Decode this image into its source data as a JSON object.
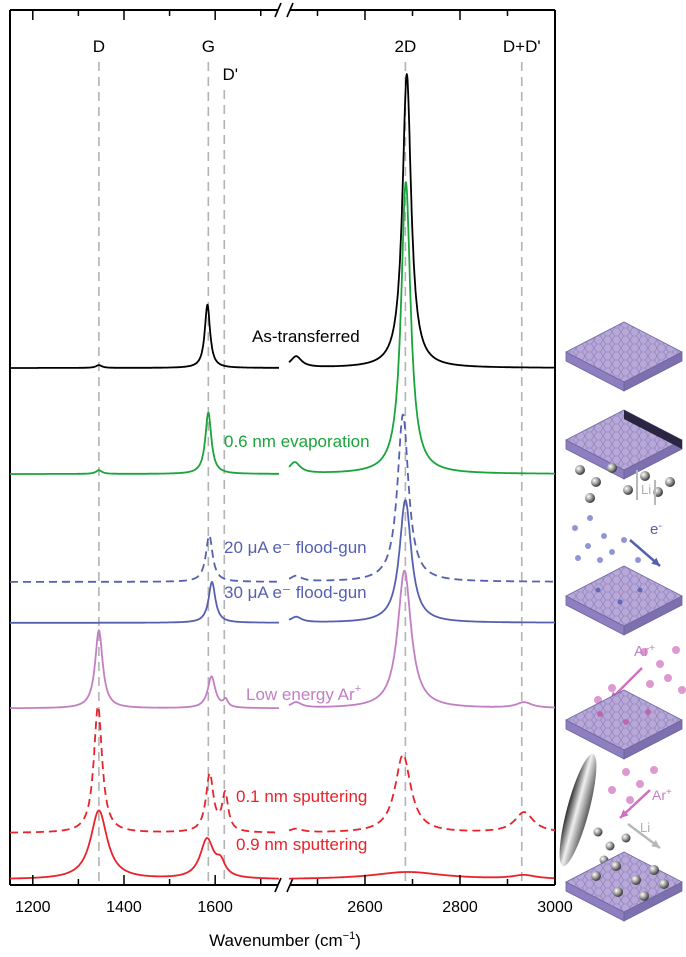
{
  "chart_data": {
    "type": "line",
    "title": "",
    "xlabel": "Wavenumber (cm",
    "xlabel_sup": "−1",
    "xlabel_close": ")",
    "ylabel": "",
    "x_segments": [
      {
        "xlim": [
          1150,
          1740
        ],
        "ticks": [
          1200,
          1400,
          1600
        ]
      },
      {
        "xlim": [
          2440,
          3000
        ],
        "ticks": [
          2600,
          2800,
          3000
        ]
      }
    ],
    "tick_labels": [
      "1200",
      "1400",
      "1600",
      "2600",
      "2800",
      "3000"
    ],
    "peak_markers": [
      {
        "label": "D",
        "x": 1345
      },
      {
        "label": "G",
        "x": 1585
      },
      {
        "label": "D'",
        "x": 1620
      },
      {
        "label": "2D",
        "x": 2685
      },
      {
        "label": "D+D'",
        "x": 2930
      }
    ],
    "series": [
      {
        "name": "As-transferred",
        "name_sub": "",
        "color": "#000000",
        "dashed": false,
        "baseline": 0.0,
        "peaks": [
          [
            1345,
            0.015,
            8
          ],
          [
            1583,
            0.34,
            7
          ],
          [
            2455,
            0.06,
            14
          ],
          [
            2688,
            1.58,
            11
          ]
        ]
      },
      {
        "name": "0.6 nm evaporation",
        "name_sub": "",
        "color": "#1aa43a",
        "dashed": false,
        "baseline": -0.57,
        "peaks": [
          [
            1345,
            0.02,
            8
          ],
          [
            1585,
            0.33,
            8
          ],
          [
            2452,
            0.06,
            14
          ],
          [
            2686,
            1.57,
            12
          ]
        ]
      },
      {
        "name": "20 ",
        "name_sub": "μA e⁻ flood-gun",
        "color": "#5560b0",
        "dashed": true,
        "baseline": -1.15,
        "peaks": [
          [
            1587,
            0.25,
            9
          ],
          [
            2455,
            0.03,
            14
          ],
          [
            2680,
            0.9,
            14
          ]
        ]
      },
      {
        "name": "30 ",
        "name_sub": "μA e⁻ flood-gun",
        "color": "#5560b0",
        "dashed": false,
        "baseline": -1.37,
        "peaks": [
          [
            1593,
            0.22,
            9
          ],
          [
            2455,
            0.03,
            14
          ],
          [
            2685,
            0.66,
            15
          ]
        ]
      },
      {
        "name": "Low energy Ar",
        "name_sub": "+",
        "color": "#c27fc4",
        "dashed": false,
        "baseline": -1.83,
        "peaks": [
          [
            1345,
            0.42,
            10
          ],
          [
            1592,
            0.17,
            10
          ],
          [
            1623,
            0.04,
            6
          ],
          [
            2455,
            0.03,
            14
          ],
          [
            2683,
            0.74,
            17
          ],
          [
            2935,
            0.03,
            20
          ]
        ]
      },
      {
        "name": "0.1 nm sputtering",
        "name_sub": "",
        "color": "#e8232b",
        "dashed": true,
        "baseline": -2.5,
        "peaks": [
          [
            1343,
            0.68,
            11
          ],
          [
            1588,
            0.31,
            10
          ],
          [
            1622,
            0.2,
            8
          ],
          [
            2455,
            0.02,
            16
          ],
          [
            2680,
            0.42,
            20
          ],
          [
            2935,
            0.11,
            24
          ]
        ]
      },
      {
        "name": "0.9 nm sputtering",
        "name_sub": "",
        "color": "#e8232b",
        "dashed": false,
        "baseline": -2.75,
        "peaks": [
          [
            1345,
            0.37,
            22
          ],
          [
            1582,
            0.21,
            18
          ],
          [
            1612,
            0.07,
            12
          ],
          [
            2690,
            0.04,
            90
          ],
          [
            2935,
            0.02,
            30
          ]
        ]
      }
    ],
    "grid": false,
    "legend": "inline labels next to curves"
  },
  "panel_labels": {
    "li": "Li",
    "electron": "e",
    "electron_sup": "-",
    "ar": "Ar",
    "ar_sup": "+"
  },
  "colors": {
    "axis": "#000000",
    "marker_line": "#b3b3b3",
    "slab_top": "#b7a8d8",
    "slab_side": "#8e7fc0",
    "slab_edge": "#6e62a0"
  }
}
